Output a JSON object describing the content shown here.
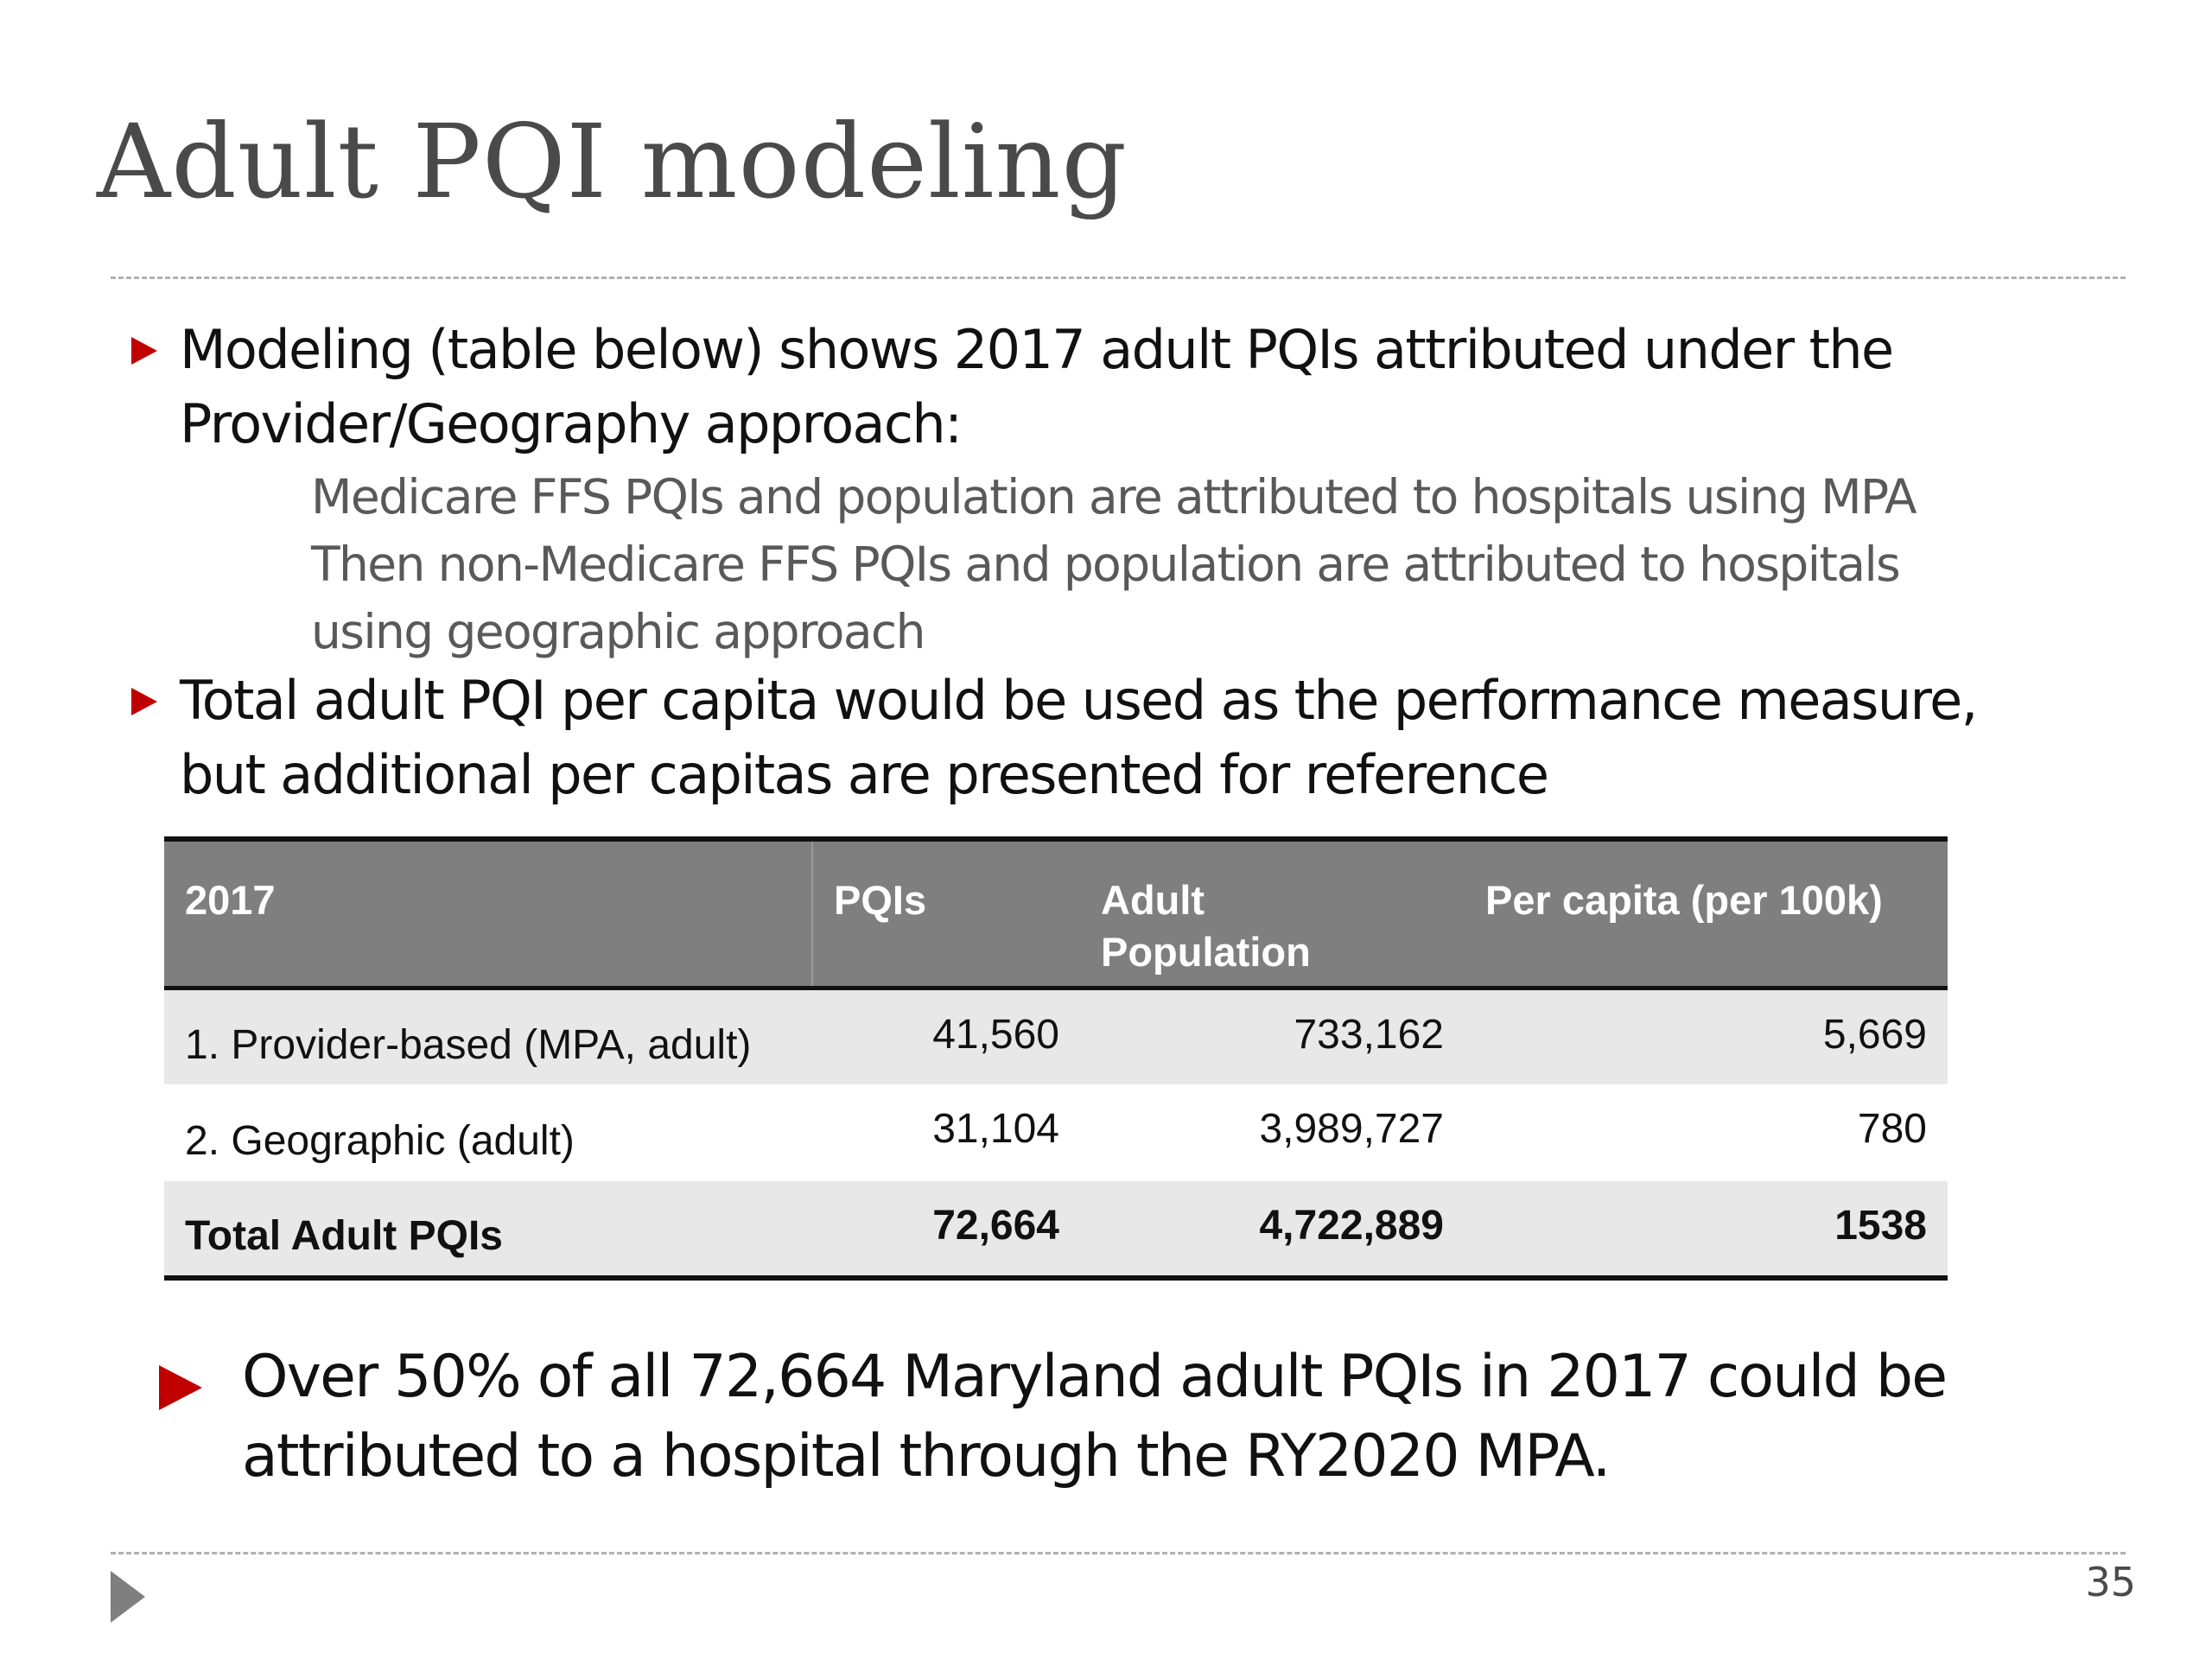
{
  "slide": {
    "title": "Adult PQI modeling",
    "page_number": "35"
  },
  "bullets": [
    {
      "line1": "Modeling (table below) shows 2017 adult PQIs attributed under the",
      "line2": "Provider/Geography approach:",
      "sub_bullets": [
        {
          "line1": "Medicare FFS PQIs and population are attributed to hospitals using MPA",
          "line2": ""
        },
        {
          "line1": "Then non-Medicare FFS PQIs and population are attributed to hospitals",
          "line2": "using geographic approach"
        }
      ]
    },
    {
      "line1": "Total adult PQI per capita would be used as the performance measure,",
      "line2": "but additional per capitas are presented for reference"
    }
  ],
  "table": {
    "headers": [
      "2017",
      "PQIs",
      "Adult",
      "Population",
      "Per capita (per 100k)"
    ],
    "rows": [
      {
        "label": "1. Provider-based (MPA, adult)",
        "pqis": "41,560",
        "population": "733,162",
        "per_capita": "5,669"
      },
      {
        "label": "2. Geographic (adult)",
        "pqis": "31,104",
        "population": "3,989,727",
        "per_capita": "780"
      },
      {
        "label": "Total Adult PQIs",
        "pqis": "72,664",
        "population": "4,722,889",
        "per_capita": "1538"
      }
    ]
  },
  "callout": {
    "line1": "Over 50% of all 72,664 Maryland adult PQIs in 2017 could be",
    "line2": "attributed to a hospital through the RY2020 MPA."
  },
  "colors": {
    "bullet_red": "#c00000",
    "header_gray": "#7f7f7f",
    "row_shade": "#e8e8e8",
    "sub_text_gray": "#595959"
  }
}
